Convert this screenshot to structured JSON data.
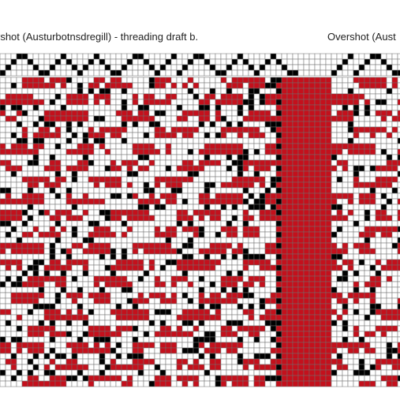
{
  "captions": {
    "left": "rshot (Austurbotnsdregill) - threading draft b.",
    "right": "Overshot (Aust"
  },
  "colors": {
    "background": "#ffffff",
    "grid_line": "#6f6f6f",
    "threading_mark": "#000000",
    "pattern_red": "#c4101c",
    "pattern_black": "#000000",
    "pattern_white": "#ffffff"
  },
  "threading_draft": {
    "shafts": 4,
    "blocks": [
      "repeat-a",
      "repeat-b",
      "repeat-c"
    ]
  },
  "drawdown": {
    "sections": [
      "left-pattern",
      "tabby-band",
      "right-pattern"
    ]
  }
}
